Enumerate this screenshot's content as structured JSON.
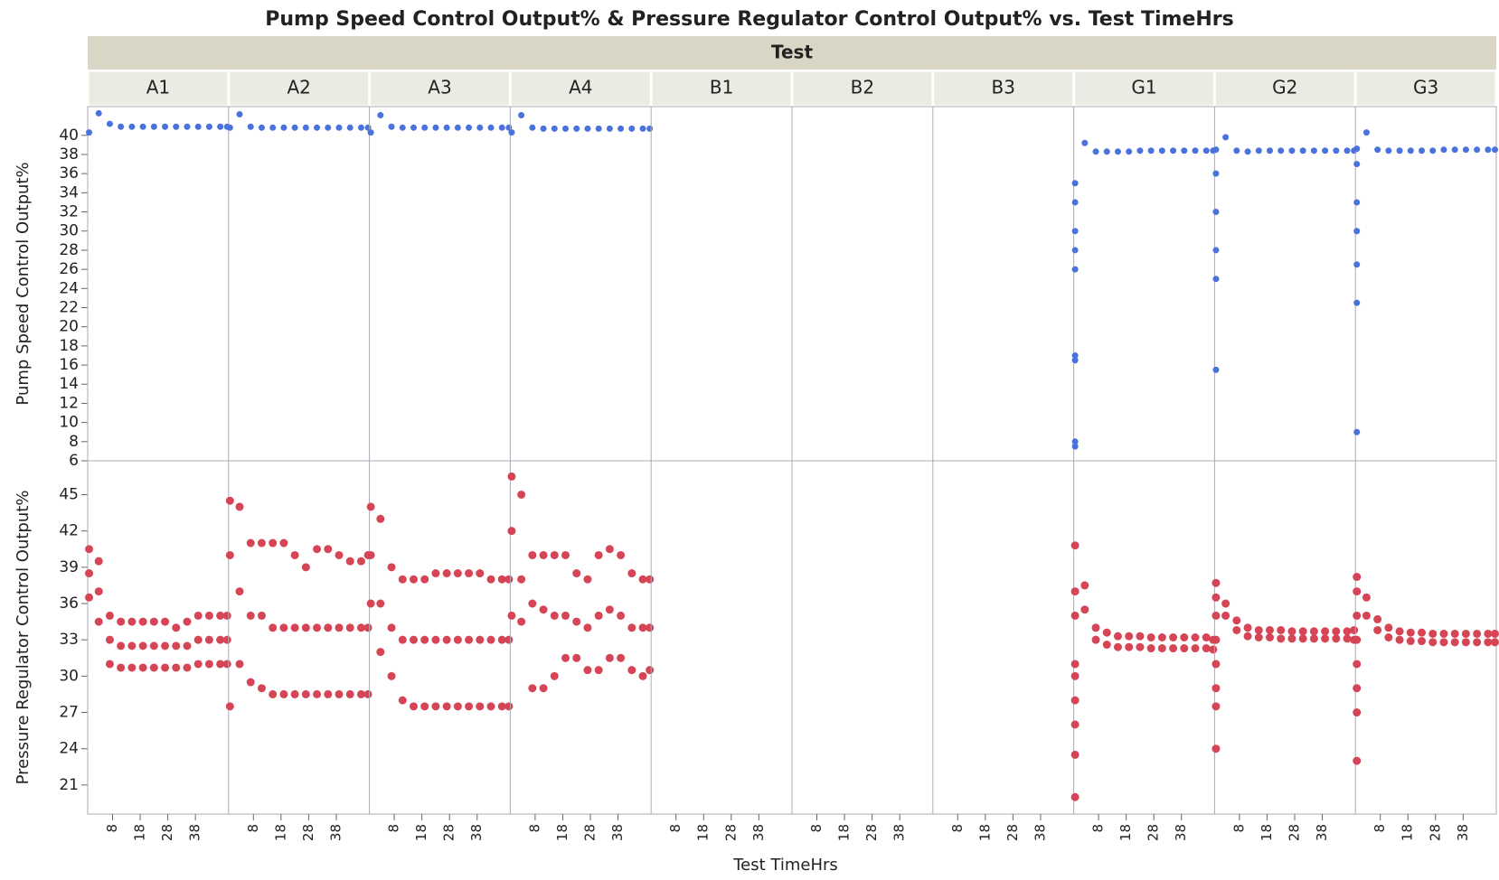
{
  "chart_data": {
    "type": "scatter",
    "title": "Pump Speed Control Output% & Pressure Regulator Control Output% vs. Test TimeHrs",
    "facet_label": "Test",
    "x_label": "Test TimeHrs",
    "xlim": [
      -1,
      50
    ],
    "xticks": [
      8,
      18,
      28,
      38
    ],
    "series": [
      {
        "name": "Pump Speed Control Output%",
        "color": "#4a72dc",
        "ylim": [
          6,
          43
        ],
        "yticks": [
          6,
          8,
          10,
          12,
          14,
          16,
          18,
          20,
          22,
          24,
          26,
          28,
          30,
          32,
          34,
          36,
          38,
          40
        ]
      },
      {
        "name": "Pressure Regulator Control Output%",
        "color": "#d64556",
        "ylim": [
          18.6,
          47.8
        ],
        "yticks": [
          21,
          24,
          27,
          30,
          33,
          36,
          39,
          42,
          45
        ]
      }
    ],
    "facets": [
      {
        "name": "A1",
        "series": [
          {
            "x": [
              -0.5,
              3,
              7,
              11,
              15,
              19,
              23,
              27,
              31,
              35,
              39,
              43,
              47,
              49.5
            ],
            "y": [
              40.3,
              42.3,
              41.2,
              40.9,
              40.9,
              40.9,
              40.9,
              40.9,
              40.9,
              40.9,
              40.9,
              40.9,
              40.9,
              40.9
            ]
          },
          {
            "x": [
              -0.5,
              3,
              7,
              11,
              15,
              19,
              23,
              27,
              31,
              35,
              39,
              43,
              47,
              49.5,
              -0.5,
              3,
              7,
              11,
              15,
              19,
              23,
              27,
              31,
              35,
              39,
              43,
              47,
              49.5,
              -0.5,
              3,
              7,
              11,
              15,
              19,
              23,
              27,
              31,
              35,
              39,
              43,
              47,
              49.5
            ],
            "y": [
              40.5,
              39.5,
              35,
              34.5,
              34.5,
              34.5,
              34.5,
              34.5,
              34,
              34.5,
              35,
              35,
              35,
              35,
              38.5,
              37,
              33,
              32.5,
              32.5,
              32.5,
              32.5,
              32.5,
              32.5,
              32.5,
              33,
              33,
              33,
              33,
              36.5,
              34.5,
              31,
              30.7,
              30.7,
              30.7,
              30.7,
              30.7,
              30.7,
              30.7,
              31,
              31,
              31,
              31
            ]
          }
        ]
      },
      {
        "name": "A2",
        "series": [
          {
            "x": [
              -0.5,
              3,
              7,
              11,
              15,
              19,
              23,
              27,
              31,
              35,
              39,
              43,
              47,
              49.5
            ],
            "y": [
              40.8,
              42.2,
              40.9,
              40.8,
              40.8,
              40.8,
              40.8,
              40.8,
              40.8,
              40.8,
              40.8,
              40.8,
              40.8,
              40.8
            ]
          },
          {
            "x": [
              -0.5,
              3,
              7,
              11,
              15,
              19,
              23,
              27,
              31,
              35,
              39,
              43,
              47,
              49.5,
              -0.5,
              3,
              7,
              11,
              15,
              19,
              23,
              27,
              31,
              35,
              39,
              43,
              47,
              49.5,
              -0.5,
              3,
              7,
              11,
              15,
              19,
              23,
              27,
              31,
              35,
              39,
              43,
              47,
              49.5
            ],
            "y": [
              44.5,
              44,
              41,
              41,
              41,
              41,
              40,
              39,
              40.5,
              40.5,
              40,
              39.5,
              39.5,
              40,
              40,
              37,
              35,
              35,
              34,
              34,
              34,
              34,
              34,
              34,
              34,
              34,
              34,
              34,
              27.5,
              31,
              29.5,
              29,
              28.5,
              28.5,
              28.5,
              28.5,
              28.5,
              28.5,
              28.5,
              28.5,
              28.5,
              28.5
            ]
          }
        ]
      },
      {
        "name": "A3",
        "series": [
          {
            "x": [
              -0.5,
              3,
              7,
              11,
              15,
              19,
              23,
              27,
              31,
              35,
              39,
              43,
              47,
              49.5
            ],
            "y": [
              40.3,
              42.1,
              40.9,
              40.8,
              40.8,
              40.8,
              40.8,
              40.8,
              40.8,
              40.8,
              40.8,
              40.8,
              40.8,
              40.8
            ]
          },
          {
            "x": [
              -0.5,
              3,
              7,
              11,
              15,
              19,
              23,
              27,
              31,
              35,
              39,
              43,
              47,
              49.5,
              -0.5,
              3,
              7,
              11,
              15,
              19,
              23,
              27,
              31,
              35,
              39,
              43,
              47,
              49.5,
              -0.5,
              3,
              7,
              11,
              15,
              19,
              23,
              27,
              31,
              35,
              39,
              43,
              47,
              49.5
            ],
            "y": [
              44,
              43,
              39,
              38,
              38,
              38,
              38.5,
              38.5,
              38.5,
              38.5,
              38.5,
              38,
              38,
              38,
              40,
              36,
              34,
              33,
              33,
              33,
              33,
              33,
              33,
              33,
              33,
              33,
              33,
              33,
              36,
              32,
              30,
              28,
              27.5,
              27.5,
              27.5,
              27.5,
              27.5,
              27.5,
              27.5,
              27.5,
              27.5,
              27.5
            ]
          }
        ]
      },
      {
        "name": "A4",
        "series": [
          {
            "x": [
              -0.5,
              3,
              7,
              11,
              15,
              19,
              23,
              27,
              31,
              35,
              39,
              43,
              47,
              49.5
            ],
            "y": [
              40.3,
              42.1,
              40.8,
              40.7,
              40.7,
              40.7,
              40.7,
              40.7,
              40.7,
              40.7,
              40.7,
              40.7,
              40.7,
              40.7
            ]
          },
          {
            "x": [
              -0.5,
              3,
              7,
              11,
              15,
              19,
              23,
              27,
              31,
              35,
              39,
              43,
              47,
              49.5,
              -0.5,
              3,
              7,
              11,
              15,
              19,
              23,
              27,
              31,
              35,
              39,
              43,
              47,
              49.5,
              -0.5,
              3,
              7,
              11,
              15,
              19,
              23,
              27,
              31,
              35,
              39,
              43,
              47,
              49.5
            ],
            "y": [
              46.5,
              45,
              40,
              40,
              40,
              40,
              38.5,
              38,
              40,
              40.5,
              40,
              38.5,
              38,
              38,
              42,
              38,
              36,
              35.5,
              35,
              35,
              34.5,
              34,
              35,
              35.5,
              35,
              34,
              34,
              34,
              35,
              34.5,
              29,
              29,
              30,
              31.5,
              31.5,
              30.5,
              30.5,
              31.5,
              31.5,
              30.5,
              30,
              30.5
            ]
          }
        ]
      },
      {
        "name": "B1",
        "series": [
          {
            "x": [],
            "y": []
          },
          {
            "x": [],
            "y": []
          }
        ]
      },
      {
        "name": "B2",
        "series": [
          {
            "x": [],
            "y": []
          },
          {
            "x": [],
            "y": []
          }
        ]
      },
      {
        "name": "B3",
        "series": [
          {
            "x": [],
            "y": []
          },
          {
            "x": [],
            "y": []
          }
        ]
      },
      {
        "name": "G1",
        "series": [
          {
            "x": [
              -0.5,
              3,
              7,
              11,
              15,
              19,
              23,
              27,
              31,
              35,
              39,
              43,
              47,
              49.5,
              -0.5,
              -0.5,
              -0.5,
              -0.5,
              -0.5,
              -0.5,
              -0.5,
              -0.5
            ],
            "y": [
              35,
              39.2,
              38.3,
              38.3,
              38.3,
              38.3,
              38.4,
              38.4,
              38.4,
              38.4,
              38.4,
              38.4,
              38.4,
              38.4,
              33,
              30,
              28,
              26,
              17,
              16.5,
              8,
              7.5
            ]
          },
          {
            "x": [
              -0.5,
              3,
              7,
              11,
              15,
              19,
              23,
              27,
              31,
              35,
              39,
              43,
              47,
              49.5,
              -0.5,
              3,
              7,
              11,
              15,
              19,
              23,
              27,
              31,
              35,
              39,
              43,
              47,
              49.5,
              -0.5,
              -0.5,
              -0.5,
              -0.5,
              -0.5,
              -0.5,
              -0.5
            ],
            "y": [
              37,
              37.5,
              34,
              33.6,
              33.3,
              33.3,
              33.3,
              33.2,
              33.2,
              33.2,
              33.2,
              33.2,
              33.2,
              33,
              35,
              35.5,
              33,
              32.6,
              32.4,
              32.4,
              32.4,
              32.3,
              32.3,
              32.3,
              32.3,
              32.3,
              32.3,
              32.2,
              40.8,
              31,
              30,
              28,
              26,
              23.5,
              20
            ]
          }
        ]
      },
      {
        "name": "G2",
        "series": [
          {
            "x": [
              -0.5,
              3,
              7,
              11,
              15,
              19,
              23,
              27,
              31,
              35,
              39,
              43,
              47,
              49.5,
              -0.5,
              -0.5,
              -0.5,
              -0.5,
              -0.5
            ],
            "y": [
              38.5,
              39.8,
              38.4,
              38.3,
              38.4,
              38.4,
              38.4,
              38.4,
              38.4,
              38.4,
              38.4,
              38.4,
              38.4,
              38.4,
              36,
              32,
              28,
              25,
              15.5
            ]
          },
          {
            "x": [
              -0.5,
              3,
              7,
              11,
              15,
              19,
              23,
              27,
              31,
              35,
              39,
              43,
              47,
              49.5,
              -0.5,
              3,
              7,
              11,
              15,
              19,
              23,
              27,
              31,
              35,
              39,
              43,
              47,
              49.5,
              -0.5,
              -0.5,
              -0.5,
              -0.5,
              -0.5,
              -0.5
            ],
            "y": [
              37.7,
              36,
              34.6,
              34,
              33.8,
              33.8,
              33.8,
              33.7,
              33.7,
              33.7,
              33.7,
              33.7,
              33.7,
              33.8,
              36.5,
              35,
              33.8,
              33.3,
              33.2,
              33.2,
              33.1,
              33.1,
              33.1,
              33.1,
              33.1,
              33.1,
              33.1,
              33,
              35,
              33,
              31,
              29,
              27.5,
              24
            ]
          }
        ]
      },
      {
        "name": "G3",
        "series": [
          {
            "x": [
              -0.5,
              3,
              7,
              11,
              15,
              19,
              23,
              27,
              31,
              35,
              39,
              43,
              47,
              49.5,
              -0.5,
              -0.5,
              -0.5,
              -0.5,
              -0.5,
              -0.5
            ],
            "y": [
              38.6,
              40.3,
              38.5,
              38.4,
              38.4,
              38.4,
              38.4,
              38.4,
              38.5,
              38.5,
              38.5,
              38.5,
              38.5,
              38.5,
              37,
              33,
              30,
              26.5,
              22.5,
              9
            ]
          },
          {
            "x": [
              -0.5,
              3,
              7,
              11,
              15,
              19,
              23,
              27,
              31,
              35,
              39,
              43,
              47,
              49.5,
              -0.5,
              3,
              7,
              11,
              15,
              19,
              23,
              27,
              31,
              35,
              39,
              43,
              47,
              49.5,
              -0.5,
              -0.5,
              -0.5,
              -0.5,
              -0.5,
              -0.5
            ],
            "y": [
              38.2,
              36.5,
              34.7,
              34,
              33.7,
              33.6,
              33.6,
              33.5,
              33.5,
              33.5,
              33.5,
              33.5,
              33.5,
              33.5,
              37,
              35,
              33.8,
              33.2,
              33,
              32.9,
              32.9,
              32.8,
              32.8,
              32.8,
              32.8,
              32.8,
              32.8,
              32.8,
              35,
              33,
              31,
              29,
              27,
              23
            ]
          }
        ]
      }
    ]
  }
}
